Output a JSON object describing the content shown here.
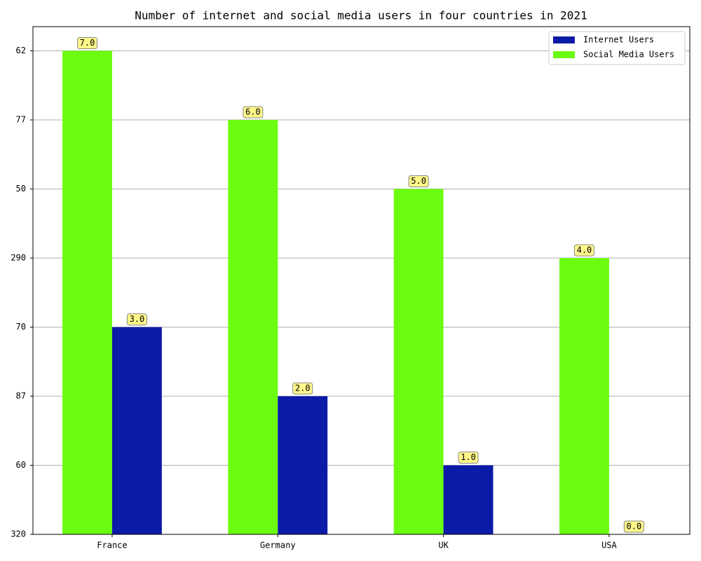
{
  "chart_data": {
    "type": "bar",
    "title": "Number of internet and social media users in four countries in 2021",
    "categories": [
      "France",
      "Germany",
      "UK",
      "USA"
    ],
    "series": [
      {
        "name": "Internet Users",
        "color": "#0c1aa8",
        "values": [
          3,
          2,
          1,
          0
        ],
        "value_labels": [
          "3.0",
          "2.0",
          "1.0",
          "0.0"
        ]
      },
      {
        "name": "Social Media Users",
        "color": "#6cfc10",
        "values": [
          7,
          6,
          5,
          4
        ],
        "value_labels": [
          "7.0",
          "6.0",
          "5.0",
          "4.0"
        ]
      }
    ],
    "ylim": [
      0,
      7.35
    ],
    "yticks": [
      {
        "value": 0,
        "label": "320"
      },
      {
        "value": 1,
        "label": "60"
      },
      {
        "value": 2,
        "label": "87"
      },
      {
        "value": 3,
        "label": "70"
      },
      {
        "value": 4,
        "label": "290"
      },
      {
        "value": 5,
        "label": "50"
      },
      {
        "value": 6,
        "label": "77"
      },
      {
        "value": 7,
        "label": "62"
      }
    ],
    "grid": true,
    "legend": "upper right"
  }
}
